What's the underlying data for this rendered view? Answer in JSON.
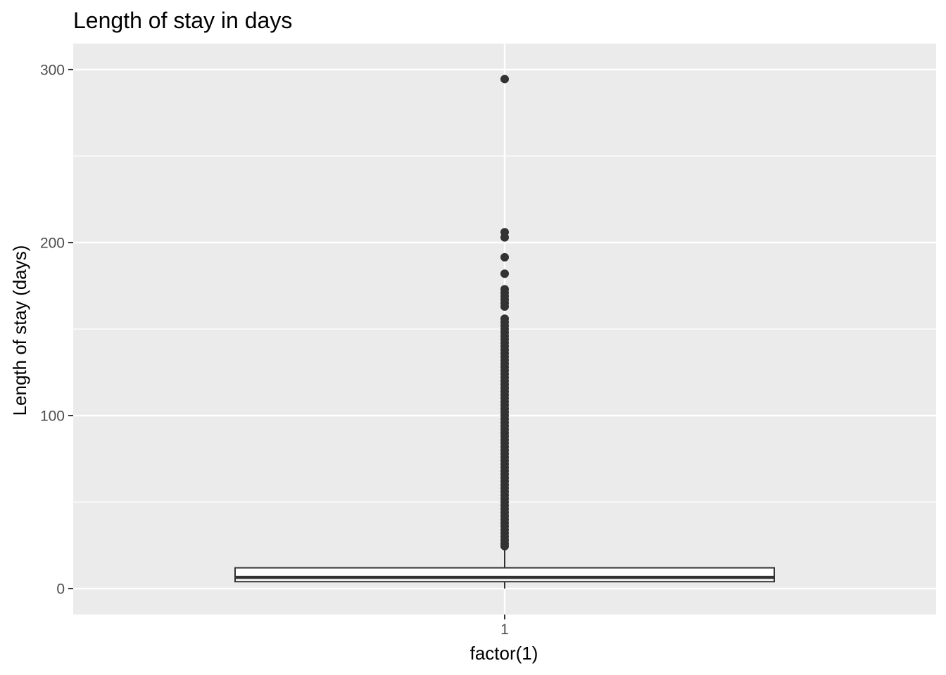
{
  "chart_data": {
    "type": "boxplot",
    "title": "Length of stay in days",
    "xlabel": "factor(1)",
    "ylabel": "Length of stay (days)",
    "categories": [
      "1"
    ],
    "ylim": [
      -15,
      315
    ],
    "y_ticks": [
      0,
      100,
      200,
      300
    ],
    "y_minor_ticks": [
      50,
      150,
      250
    ],
    "grid": true,
    "box": {
      "category": "1",
      "q1": 4,
      "median": 6.5,
      "q3": 12,
      "whisker_low": 0,
      "whisker_high": 23
    },
    "outliers": [
      294.5,
      206,
      203,
      191.5,
      182,
      173,
      171,
      169,
      167,
      165,
      163,
      156,
      154,
      152,
      150,
      148,
      146,
      144,
      142,
      140,
      138,
      136,
      134,
      132,
      130,
      128,
      126,
      124,
      122,
      120,
      118,
      116,
      114,
      112,
      110,
      108,
      106,
      104,
      102,
      100,
      98,
      96,
      94,
      92,
      90,
      88,
      86,
      84,
      82,
      80,
      78,
      76,
      74,
      72,
      70,
      68,
      66,
      64,
      62,
      60,
      58,
      56,
      54,
      52,
      50,
      48,
      46,
      44,
      42,
      40,
      38,
      36,
      34,
      32,
      30,
      28,
      26,
      24.5
    ],
    "colors": {
      "panel": "#ebebeb",
      "grid": "#ffffff",
      "box_fill": "#ffffff",
      "box_line": "#333333",
      "point": "#333333",
      "tick_text": "#4d4d4d"
    }
  }
}
